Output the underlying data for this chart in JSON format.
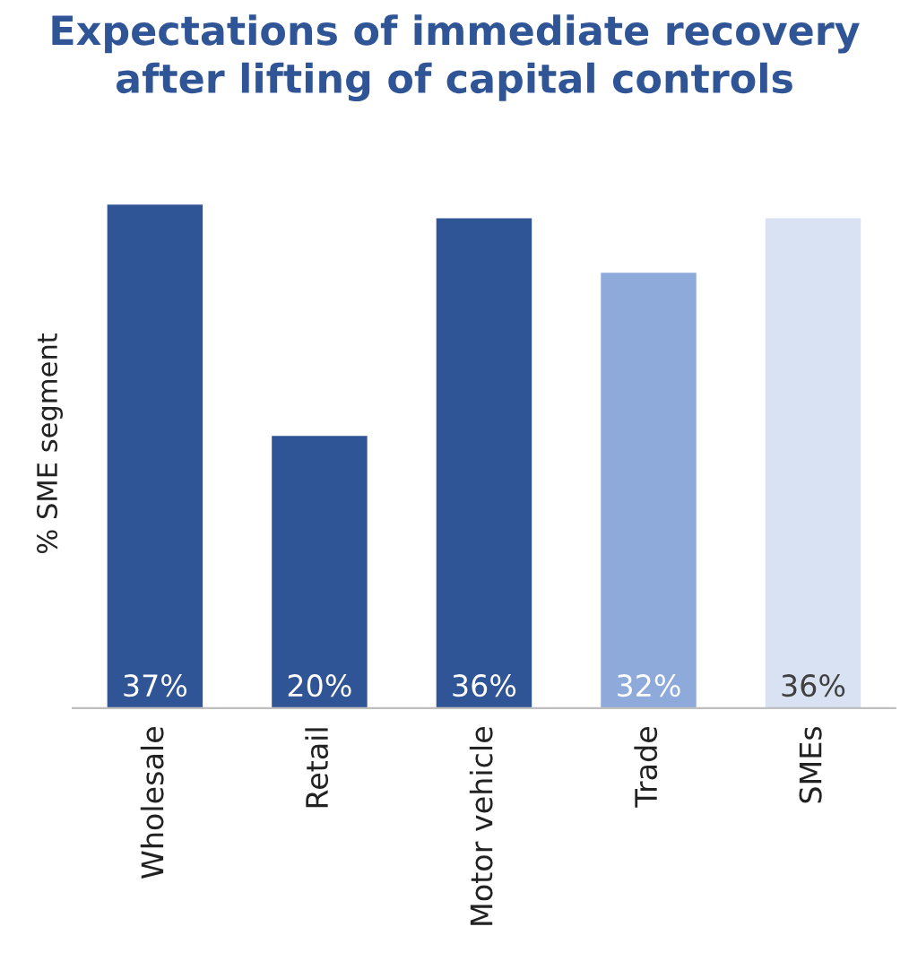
{
  "chart_data": {
    "type": "bar",
    "title": "Expectations of immediate recovery\nafter lifting of capital controls",
    "ylabel": "% SME segment",
    "categories": [
      "Wholesale",
      "Retail",
      "Motor vehicle",
      "Trade",
      "SMEs"
    ],
    "values": [
      37,
      20,
      36,
      32,
      36
    ],
    "value_labels": [
      "37%",
      "20%",
      "36%",
      "32%",
      "36%"
    ],
    "colors": [
      "#2f5597",
      "#2f5597",
      "#2f5597",
      "#8eaadb",
      "#d9e2f3"
    ],
    "grid": false,
    "legend": false
  }
}
